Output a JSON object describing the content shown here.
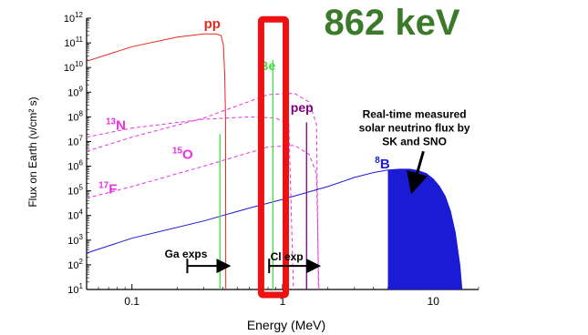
{
  "headline": "862 keV",
  "chart_data": {
    "type": "line",
    "title": "",
    "xlabel": "Energy (MeV)",
    "ylabel": "Flux on Earth (ν/cm² s)",
    "x_scale": "log",
    "y_scale": "log",
    "xlim": [
      0.05,
      20
    ],
    "ylim": [
      10,
      1000000000000
    ],
    "x_ticks": [
      {
        "value": 0.1,
        "label": "0.1"
      },
      {
        "value": 1,
        "label": "1"
      },
      {
        "value": 10,
        "label": "10"
      }
    ],
    "y_ticks": [
      {
        "value": 10,
        "base": "10",
        "exp": "1"
      },
      {
        "value": 100,
        "base": "10",
        "exp": "2"
      },
      {
        "value": 1000,
        "base": "10",
        "exp": "3"
      },
      {
        "value": 10000,
        "base": "10",
        "exp": "4"
      },
      {
        "value": 100000,
        "base": "10",
        "exp": "5"
      },
      {
        "value": 1000000,
        "base": "10",
        "exp": "6"
      },
      {
        "value": 10000000,
        "base": "10",
        "exp": "7"
      },
      {
        "value": 100000000,
        "base": "10",
        "exp": "8"
      },
      {
        "value": 1000000000,
        "base": "10",
        "exp": "9"
      },
      {
        "value": 10000000000,
        "base": "10",
        "exp": "10"
      },
      {
        "value": 100000000000,
        "base": "10",
        "exp": "11"
      },
      {
        "value": 1000000000000,
        "base": "10",
        "exp": "12"
      }
    ],
    "series": [
      {
        "id": "pp",
        "label_main": "pp",
        "label_sup": "",
        "color": "#e8291c",
        "style": "solid",
        "label_at": [
          0.3,
          400000000000
        ],
        "points": [
          [
            0.05,
            18000000000
          ],
          [
            0.1,
            70000000000
          ],
          [
            0.2,
            170000000000
          ],
          [
            0.3,
            230000000000
          ],
          [
            0.36,
            230000000000
          ],
          [
            0.39,
            200000000000
          ],
          [
            0.405,
            80000000000
          ],
          [
            0.413,
            5000000000
          ],
          [
            0.418,
            100000000
          ],
          [
            0.42,
            10
          ]
        ]
      },
      {
        "id": "n13",
        "label_main": "N",
        "label_sup": "13",
        "color": "#e830e0",
        "style": "dashed",
        "label_at": [
          0.067,
          30000000
        ],
        "points": [
          [
            0.05,
            15000000
          ],
          [
            0.1,
            35000000
          ],
          [
            0.3,
            80000000
          ],
          [
            0.6,
            100000000
          ],
          [
            0.9,
            90000000
          ],
          [
            1.1,
            50000000
          ],
          [
            1.18,
            10
          ]
        ]
      },
      {
        "id": "o15",
        "label_main": "O",
        "label_sup": "15",
        "color": "#e830e0",
        "style": "dashed",
        "label_at": [
          0.185,
          2000000
        ],
        "points": [
          [
            0.05,
            4000000
          ],
          [
            0.1,
            15000000
          ],
          [
            0.3,
            90000000
          ],
          [
            0.8,
            800000000
          ],
          [
            1.2,
            900000000
          ],
          [
            1.5,
            400000000
          ],
          [
            1.68,
            50000000
          ],
          [
            1.73,
            10
          ]
        ]
      },
      {
        "id": "f17",
        "label_main": "F",
        "label_sup": "17",
        "color": "#e830e0",
        "style": "dashed",
        "label_at": [
          0.06,
          80000
        ],
        "points": [
          [
            0.05,
            50000
          ],
          [
            0.1,
            150000
          ],
          [
            0.3,
            1000000
          ],
          [
            0.8,
            6000000
          ],
          [
            1.2,
            7000000
          ],
          [
            1.5,
            3000000
          ],
          [
            1.68,
            500000
          ],
          [
            1.74,
            10
          ]
        ]
      },
      {
        "id": "b8",
        "label_main": "B",
        "label_sup": "8",
        "color": "#1b1bd6",
        "style": "solid",
        "label_at": [
          4.1,
          800000
        ],
        "points": [
          [
            0.05,
            300
          ],
          [
            0.1,
            1200
          ],
          [
            0.3,
            6000
          ],
          [
            0.6,
            20000
          ],
          [
            1,
            45000
          ],
          [
            2,
            150000
          ],
          [
            3,
            350000
          ],
          [
            4,
            550000
          ],
          [
            5,
            700000
          ],
          [
            6,
            750000
          ],
          [
            7,
            750000
          ],
          [
            8,
            650000
          ],
          [
            9,
            500000
          ],
          [
            10,
            300000
          ],
          [
            11,
            150000
          ],
          [
            12,
            60000
          ],
          [
            13,
            15000
          ],
          [
            14,
            2000
          ],
          [
            15,
            100
          ],
          [
            15.5,
            10
          ]
        ]
      }
    ],
    "fill_region": {
      "id": "b8-measured",
      "color": "#1b1bd6",
      "x_start": 5,
      "points": [
        [
          5,
          700000
        ],
        [
          6,
          750000
        ],
        [
          7,
          750000
        ],
        [
          8,
          650000
        ],
        [
          9,
          500000
        ],
        [
          10,
          300000
        ],
        [
          11,
          150000
        ],
        [
          12,
          60000
        ],
        [
          13,
          15000
        ],
        [
          14,
          2000
        ],
        [
          15,
          100
        ],
        [
          15.5,
          10
        ]
      ]
    },
    "lines": [
      {
        "id": "be-line",
        "label": "Be",
        "label_sup": "",
        "x": 0.862,
        "y_top": 20000000000,
        "color": "#43e043",
        "label_at": [
          0.7,
          8000000000
        ]
      },
      {
        "id": "be-line-2",
        "label": "",
        "label_sup": "",
        "x": 0.384,
        "y_top": 20000000,
        "color": "#43e043"
      },
      {
        "id": "pep-line",
        "label": "pep",
        "label_sup": "",
        "x": 1.442,
        "y_top": 60000000,
        "color": "#800080",
        "label_at": [
          1.13,
          160000000
        ]
      }
    ],
    "highlight_box": {
      "x0": 0.72,
      "x1": 1.05,
      "y0": 6,
      "y1": 900000000000,
      "color": "#ee1111"
    },
    "annotations": [
      {
        "id": "realtime-note",
        "lines": [
          "Real-time measured",
          "solar neutrino flux by",
          "SK and SNO"
        ],
        "at": [
          7.5,
          90000000
        ],
        "arrow_from": [
          8.6,
          4000000
        ],
        "arrow_to": [
          7.3,
          120000
        ]
      },
      {
        "id": "ga-exps",
        "text": "Ga exps",
        "at": [
          0.165,
          200
        ],
        "arrow_from": [
          0.233,
          90
        ],
        "arrow_to": [
          0.43,
          90
        ]
      },
      {
        "id": "cl-exp",
        "text": "Cl exp",
        "at": [
          0.83,
          150
        ],
        "arrow_from": [
          0.814,
          90
        ],
        "arrow_to": [
          1.7,
          90
        ]
      }
    ]
  }
}
